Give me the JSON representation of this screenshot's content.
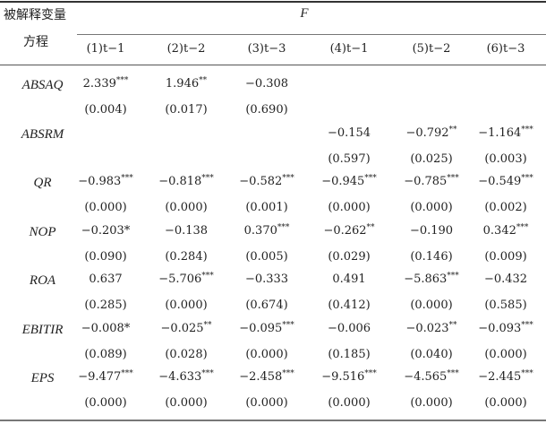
{
  "header": {
    "row_label_line1": "被解释变量",
    "row_label_line2": "方程",
    "group_label": "F",
    "columns": [
      "(1)t−1",
      "(2)t−2",
      "(3)t−3",
      "(4)t−1",
      "(5)t−2",
      "(6)t−3"
    ]
  },
  "rows": [
    {
      "var": "ABSAQ",
      "coef": [
        {
          "v": "2.339",
          "s": "***"
        },
        {
          "v": "1.946",
          "s": "**"
        },
        {
          "v": "−0.308",
          "s": ""
        },
        {
          "v": "",
          "s": ""
        },
        {
          "v": "",
          "s": ""
        },
        {
          "v": "",
          "s": ""
        }
      ],
      "p": [
        "(0.004)",
        "(0.017)",
        "(0.690)",
        "",
        "",
        ""
      ]
    },
    {
      "var": "ABSRM",
      "coef": [
        {
          "v": "",
          "s": ""
        },
        {
          "v": "",
          "s": ""
        },
        {
          "v": "",
          "s": ""
        },
        {
          "v": "−0.154",
          "s": ""
        },
        {
          "v": "−0.792",
          "s": "**"
        },
        {
          "v": "−1.164",
          "s": "***"
        }
      ],
      "p": [
        "",
        "",
        "",
        "(0.597)",
        "(0.025)",
        "(0.003)"
      ]
    },
    {
      "var": "QR",
      "coef": [
        {
          "v": "−0.983",
          "s": "***"
        },
        {
          "v": "−0.818",
          "s": "***"
        },
        {
          "v": "−0.582",
          "s": "***"
        },
        {
          "v": "−0.945",
          "s": "***"
        },
        {
          "v": "−0.785",
          "s": "***"
        },
        {
          "v": "−0.549",
          "s": "***"
        }
      ],
      "p": [
        "(0.000)",
        "(0.000)",
        "(0.001)",
        "(0.000)",
        "(0.000)",
        "(0.002)"
      ]
    },
    {
      "var": "NOP",
      "coef": [
        {
          "v": "−0.203",
          "s": "*"
        },
        {
          "v": "−0.138",
          "s": ""
        },
        {
          "v": "0.370",
          "s": "***"
        },
        {
          "v": "−0.262",
          "s": "**"
        },
        {
          "v": "−0.190",
          "s": ""
        },
        {
          "v": "0.342",
          "s": "***"
        }
      ],
      "p": [
        "(0.090)",
        "(0.284)",
        "(0.005)",
        "(0.029)",
        "(0.146)",
        "(0.009)"
      ]
    },
    {
      "var": "ROA",
      "coef": [
        {
          "v": "0.637",
          "s": ""
        },
        {
          "v": "−5.706",
          "s": "***"
        },
        {
          "v": "−0.333",
          "s": ""
        },
        {
          "v": "0.491",
          "s": ""
        },
        {
          "v": "−5.863",
          "s": "***"
        },
        {
          "v": "−0.432",
          "s": ""
        }
      ],
      "p": [
        "(0.285)",
        "(0.000)",
        "(0.674)",
        "(0.412)",
        "(0.000)",
        "(0.585)"
      ]
    },
    {
      "var": "EBITIR",
      "coef": [
        {
          "v": "−0.008",
          "s": "*"
        },
        {
          "v": "−0.025",
          "s": "**"
        },
        {
          "v": "−0.095",
          "s": "***"
        },
        {
          "v": "−0.006",
          "s": ""
        },
        {
          "v": "−0.023",
          "s": "**"
        },
        {
          "v": "−0.093",
          "s": "***"
        }
      ],
      "p": [
        "(0.089)",
        "(0.028)",
        "(0.000)",
        "(0.185)",
        "(0.040)",
        "(0.000)"
      ]
    },
    {
      "var": "EPS",
      "coef": [
        {
          "v": "−9.477",
          "s": "***"
        },
        {
          "v": "−4.633",
          "s": "***"
        },
        {
          "v": "−2.458",
          "s": "***"
        },
        {
          "v": "−9.516",
          "s": "***"
        },
        {
          "v": "−4.565",
          "s": "***"
        },
        {
          "v": "−2.445",
          "s": "***"
        }
      ],
      "p": [
        "(0.000)",
        "(0.000)",
        "(0.000)",
        "(0.000)",
        "(0.000)",
        "(0.000)"
      ]
    }
  ]
}
